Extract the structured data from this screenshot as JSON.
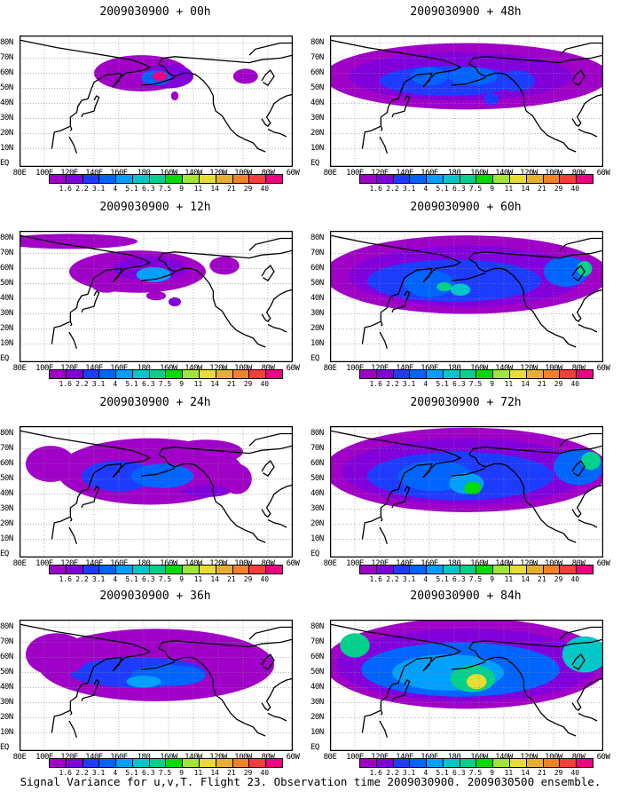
{
  "figure": {
    "footer": "Signal Variance for u,v,T. Flight 23. Observation time 2009030900. 2009030500 ensemble."
  },
  "axes": {
    "lat_labels": [
      "80N",
      "70N",
      "60N",
      "50N",
      "40N",
      "30N",
      "20N",
      "10N",
      "EQ"
    ],
    "lon_labels": [
      "80E",
      "100E",
      "120E",
      "140E",
      "160E",
      "180",
      "160W",
      "140W",
      "120W",
      "100W",
      "80W",
      "60W"
    ]
  },
  "colorbar": {
    "labels": [
      "1.6",
      "2.2",
      "3.1",
      "4",
      "5.1",
      "6.3",
      "7.5",
      "9",
      "11",
      "14",
      "21",
      "29",
      "40"
    ],
    "colors": [
      "#a000c8",
      "#8200dc",
      "#1e3cff",
      "#0064ff",
      "#00a0ff",
      "#00c8c8",
      "#00d28c",
      "#00dc00",
      "#a0e632",
      "#e6dc32",
      "#e6af2d",
      "#f08228",
      "#fa3c3c",
      "#f00082"
    ]
  },
  "panels": [
    {
      "title": "2009030900 + 00h",
      "lead": 0
    },
    {
      "title": "2009030900 + 48h",
      "lead": 48
    },
    {
      "title": "2009030900 + 12h",
      "lead": 12
    },
    {
      "title": "2009030900 + 60h",
      "lead": 60
    },
    {
      "title": "2009030900 + 24h",
      "lead": 24
    },
    {
      "title": "2009030900 + 72h",
      "lead": 72
    },
    {
      "title": "2009030900 + 36h",
      "lead": 36
    },
    {
      "title": "2009030900 + 84h",
      "lead": 84
    }
  ]
}
